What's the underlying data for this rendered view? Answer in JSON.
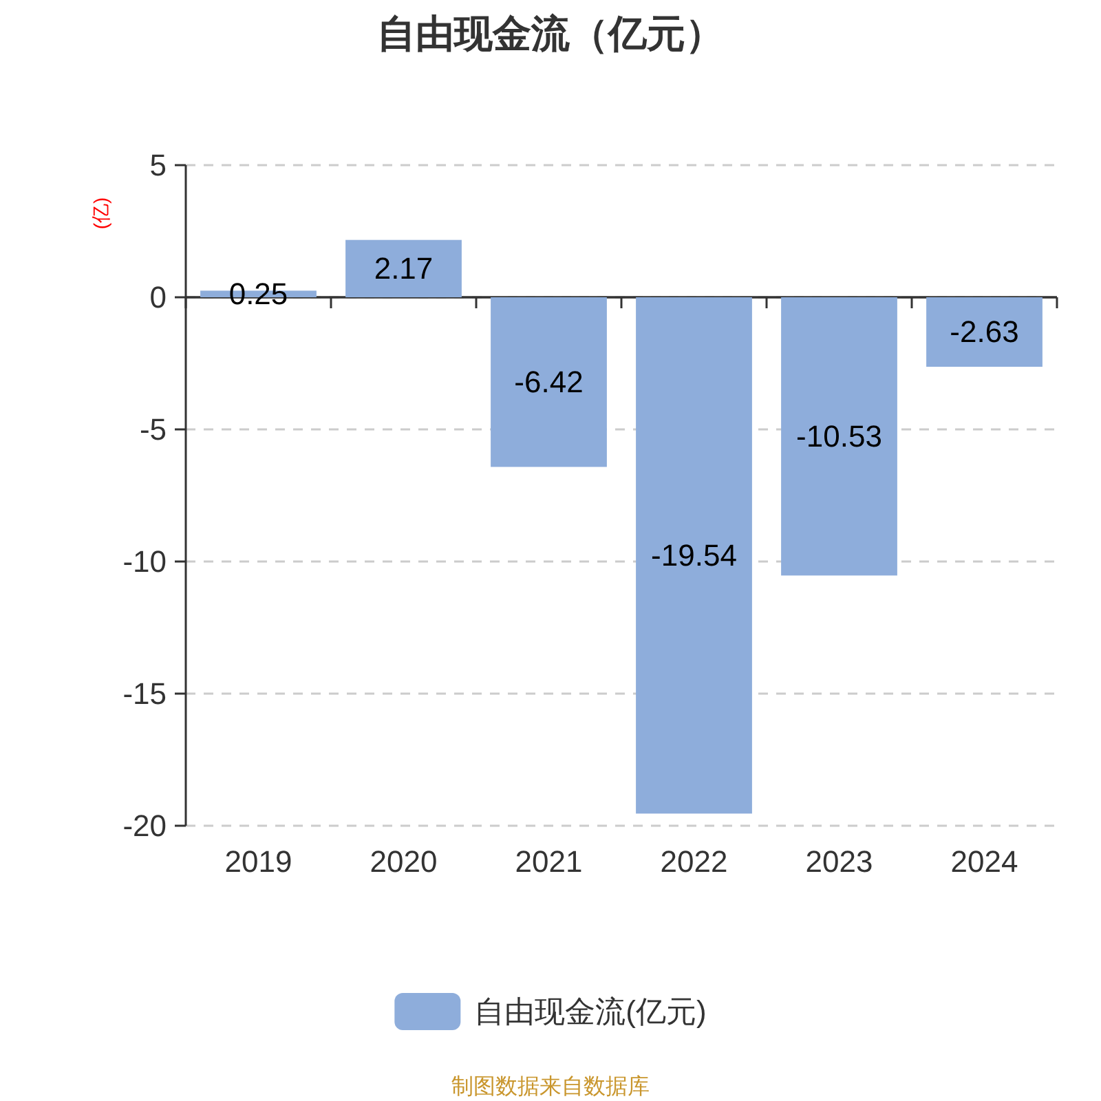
{
  "chart_data": {
    "type": "bar",
    "title": "自由现金流（亿元）",
    "ylabel": "(亿)",
    "categories": [
      "2019",
      "2020",
      "2021",
      "2022",
      "2023",
      "2024"
    ],
    "series": [
      {
        "name": "自由现金流(亿元)",
        "color": "#8eaddb",
        "values": [
          0.25,
          2.17,
          -6.42,
          -19.54,
          -10.53,
          -2.63
        ]
      }
    ],
    "ylim": [
      -20,
      5
    ],
    "yticks": [
      -20,
      -15,
      -10,
      -5,
      0,
      5
    ],
    "grid": "y",
    "legend": "bottom",
    "data_labels": true,
    "annotations": [
      "制图数据来自数据库"
    ]
  }
}
